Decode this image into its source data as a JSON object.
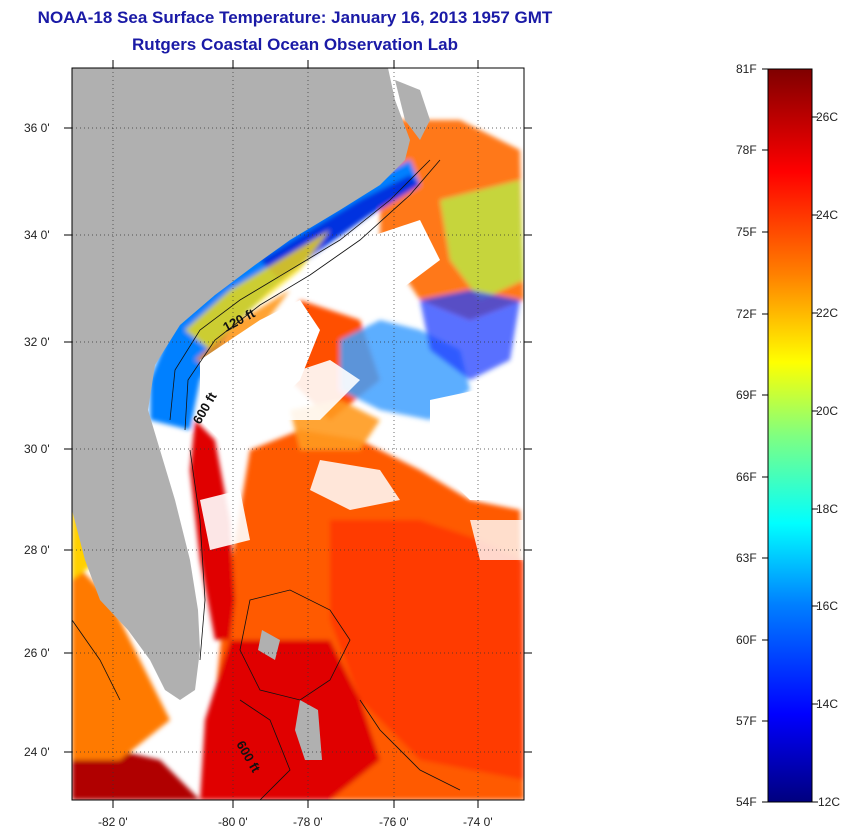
{
  "title_line1": "NOAA-18 Sea Surface Temperature:  January 16, 2013 1957 GMT",
  "title_line2": "Rutgers Coastal Ocean Observation Lab",
  "lat_labels": [
    "36 0'",
    "34 0'",
    "32 0'",
    "30 0'",
    "28 0'",
    "26 0'",
    "24 0'"
  ],
  "lon_labels": [
    "-82 0'",
    "-80 0'",
    "-78 0'",
    "-76 0'",
    "-74 0'"
  ],
  "contour_labels": [
    "120 ft",
    "600 ft",
    "600 ft"
  ],
  "colorbar": {
    "fahrenheit_labels": [
      "81F",
      "78F",
      "75F",
      "72F",
      "69F",
      "66F",
      "63F",
      "60F",
      "57F",
      "54F"
    ],
    "celsius_labels": [
      "26C",
      "24C",
      "22C",
      "20C",
      "18C",
      "16C",
      "14C",
      "12C"
    ],
    "range_f": [
      54,
      81
    ],
    "range_c": [
      12,
      27
    ],
    "colors": [
      "#00007f",
      "#0000ff",
      "#0080ff",
      "#00ffff",
      "#80ff80",
      "#ffff00",
      "#ff8000",
      "#ff0000",
      "#7f0000"
    ]
  },
  "colors": {
    "land": "#b0b0b0",
    "cloud": "#ffffff",
    "title": "#1a1aa6"
  }
}
